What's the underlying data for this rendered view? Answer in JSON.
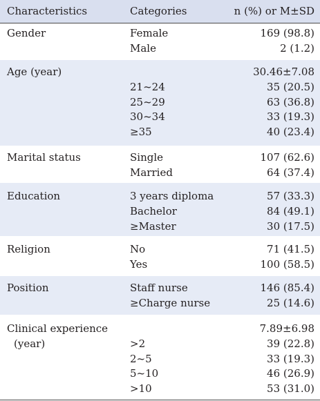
{
  "header": {
    "characteristics": "Characteristics",
    "categories": "Categories",
    "value": "n (%) or M±SD"
  },
  "groups": [
    {
      "name": "Gender",
      "shaded": false,
      "rows": [
        [
          "Female",
          "169 (98.8)"
        ],
        [
          "Male",
          "2 (1.2)"
        ]
      ]
    },
    {
      "name": "Age (year)",
      "shaded": true,
      "rows": [
        [
          "",
          "30.46±7.08"
        ],
        [
          "21~24",
          "35 (20.5)"
        ],
        [
          "25~29",
          "63 (36.8)"
        ],
        [
          "30~34",
          "33 (19.3)"
        ],
        [
          "≥35",
          "40 (23.4)"
        ]
      ]
    },
    {
      "name": "Marital status",
      "shaded": false,
      "rows": [
        [
          "Single",
          "107 (62.6)"
        ],
        [
          "Married",
          "64 (37.4)"
        ]
      ]
    },
    {
      "name": "Education",
      "shaded": true,
      "rows": [
        [
          "3 years diploma",
          "57 (33.3)"
        ],
        [
          "Bachelor",
          "84 (49.1)"
        ],
        [
          "≥Master",
          "30 (17.5)"
        ]
      ]
    },
    {
      "name": "Religion",
      "shaded": false,
      "rows": [
        [
          "No",
          "71 (41.5)"
        ],
        [
          "Yes",
          "100 (58.5)"
        ]
      ]
    },
    {
      "name": "Position",
      "shaded": true,
      "rows": [
        [
          "Staff nurse",
          "146 (85.4)"
        ],
        [
          "≥Charge nurse",
          "25 (14.6)"
        ]
      ]
    },
    {
      "name": "Clinical experience",
      "name2": "(year)",
      "shaded": false,
      "rows": [
        [
          "",
          "7.89±6.98"
        ],
        [
          ">2",
          "39 (22.8)"
        ],
        [
          "2~5",
          "33 (19.3)"
        ],
        [
          "5~10",
          "46 (26.9)"
        ],
        [
          ">10",
          "53 (31.0)"
        ]
      ]
    }
  ]
}
